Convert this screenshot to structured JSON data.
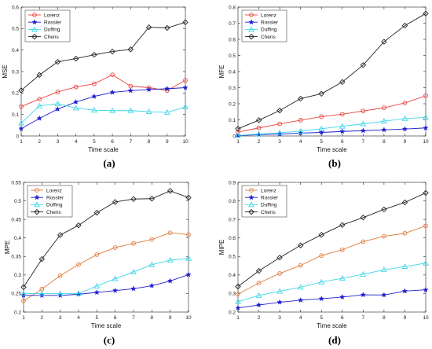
{
  "chart_data": [
    {
      "type": "line",
      "caption": "(a)",
      "xlabel": "Time scale",
      "ylabel": "MSE",
      "x": [
        1,
        2,
        3,
        4,
        5,
        6,
        7,
        8,
        9,
        10
      ],
      "xticks": [
        1,
        2,
        3,
        4,
        5,
        6,
        7,
        8,
        9,
        10
      ],
      "ylim": [
        0,
        0.6
      ],
      "yticks": [
        0,
        0.1,
        0.2,
        0.3,
        0.4,
        0.5,
        0.6
      ],
      "yticklabels": [
        "0",
        "0.1",
        "0.2",
        "0.3",
        "0.4",
        "0.5",
        "0.6"
      ],
      "grid": false,
      "legend": "top-left",
      "series": [
        {
          "name": "Lorenz",
          "color": "#e8413c",
          "marker": "circle",
          "values": [
            0.137,
            0.172,
            0.205,
            0.228,
            0.243,
            0.285,
            0.232,
            0.225,
            0.212,
            0.259
          ]
        },
        {
          "name": "Rossler",
          "color": "#1f1fd0",
          "marker": "star",
          "values": [
            0.034,
            0.082,
            0.125,
            0.158,
            0.184,
            0.203,
            0.211,
            0.216,
            0.22,
            0.225
          ]
        },
        {
          "name": "Duffing",
          "color": "#3dd6e8",
          "marker": "triangle",
          "values": [
            0.06,
            0.14,
            0.15,
            0.13,
            0.12,
            0.118,
            0.118,
            0.113,
            0.11,
            0.135
          ]
        },
        {
          "name": "Chens",
          "color": "#222222",
          "marker": "diamond",
          "values": [
            0.212,
            0.284,
            0.345,
            0.36,
            0.378,
            0.393,
            0.403,
            0.506,
            0.503,
            0.529
          ]
        }
      ]
    },
    {
      "type": "line",
      "caption": "(b)",
      "xlabel": "Time scale",
      "ylabel": "MFE",
      "x": [
        1,
        2,
        3,
        4,
        5,
        6,
        7,
        8,
        9,
        10
      ],
      "xticks": [
        1,
        2,
        3,
        4,
        5,
        6,
        7,
        8,
        9,
        10
      ],
      "ylim": [
        0,
        0.8
      ],
      "yticks": [
        0,
        0.1,
        0.2,
        0.3,
        0.4,
        0.5,
        0.6,
        0.7,
        0.8
      ],
      "yticklabels": [
        "0",
        "0.1",
        "0.2",
        "0.3",
        "0.4",
        "0.5",
        "0.6",
        "0.7",
        "0.8"
      ],
      "grid": false,
      "legend": "top-left",
      "series": [
        {
          "name": "Lorenz",
          "color": "#e8413c",
          "marker": "circle",
          "values": [
            0.025,
            0.05,
            0.075,
            0.098,
            0.12,
            0.135,
            0.155,
            0.175,
            0.205,
            0.25
          ]
        },
        {
          "name": "Rossler",
          "color": "#1f1fd0",
          "marker": "star",
          "values": [
            0.003,
            0.008,
            0.012,
            0.018,
            0.022,
            0.028,
            0.033,
            0.038,
            0.043,
            0.05
          ]
        },
        {
          "name": "Duffing",
          "color": "#3dd6e8",
          "marker": "triangle",
          "values": [
            0.004,
            0.012,
            0.02,
            0.03,
            0.045,
            0.06,
            0.075,
            0.092,
            0.108,
            0.115
          ]
        },
        {
          "name": "Chens",
          "color": "#222222",
          "marker": "diamond",
          "values": [
            0.045,
            0.098,
            0.158,
            0.232,
            0.262,
            0.335,
            0.44,
            0.585,
            0.685,
            0.76
          ]
        }
      ]
    },
    {
      "type": "line",
      "caption": "(c)",
      "xlabel": "Time scale",
      "ylabel": "MPE",
      "x": [
        1,
        2,
        3,
        4,
        5,
        6,
        7,
        8,
        9,
        10
      ],
      "xticks": [
        1,
        2,
        3,
        4,
        5,
        6,
        7,
        8,
        9,
        10
      ],
      "ylim": [
        0.2,
        0.55
      ],
      "yticks": [
        0.2,
        0.25,
        0.3,
        0.35,
        0.4,
        0.45,
        0.5,
        0.55
      ],
      "yticklabels": [
        "0.2",
        "0.25",
        "0.3",
        "0.35",
        "0.4",
        "0.45",
        "0.5",
        "0.55"
      ],
      "grid": false,
      "legend": "top-left",
      "series": [
        {
          "name": "Lorenz",
          "color": "#e07a3a",
          "marker": "circle",
          "values": [
            0.23,
            0.262,
            0.298,
            0.328,
            0.355,
            0.374,
            0.385,
            0.396,
            0.414,
            0.409
          ]
        },
        {
          "name": "Rossler",
          "color": "#1f1fd0",
          "marker": "star",
          "values": [
            0.245,
            0.245,
            0.245,
            0.248,
            0.253,
            0.258,
            0.263,
            0.271,
            0.284,
            0.301
          ]
        },
        {
          "name": "Duffing",
          "color": "#3dd6e8",
          "marker": "triangle",
          "values": [
            0.25,
            0.25,
            0.25,
            0.25,
            0.27,
            0.29,
            0.308,
            0.328,
            0.34,
            0.345
          ]
        },
        {
          "name": "Chens",
          "color": "#222222",
          "marker": "diamond",
          "values": [
            0.267,
            0.343,
            0.408,
            0.434,
            0.468,
            0.497,
            0.505,
            0.506,
            0.527,
            0.509
          ]
        }
      ]
    },
    {
      "type": "line",
      "caption": "(d)",
      "xlabel": "Time scale",
      "ylabel": "MIPE",
      "x": [
        1,
        2,
        3,
        4,
        5,
        6,
        7,
        8,
        9,
        10
      ],
      "xticks": [
        1,
        2,
        3,
        4,
        5,
        6,
        7,
        8,
        9,
        10
      ],
      "ylim": [
        0.2,
        0.9
      ],
      "yticks": [
        0.2,
        0.3,
        0.4,
        0.5,
        0.6,
        0.7,
        0.8,
        0.9
      ],
      "yticklabels": [
        "0.2",
        "0.3",
        "0.4",
        "0.5",
        "0.6",
        "0.7",
        "0.8",
        "0.9"
      ],
      "grid": false,
      "legend": "top-left",
      "series": [
        {
          "name": "Lorenz",
          "color": "#e07a3a",
          "marker": "circle",
          "values": [
            0.297,
            0.357,
            0.408,
            0.452,
            0.505,
            0.536,
            0.58,
            0.609,
            0.625,
            0.665
          ]
        },
        {
          "name": "Rossler",
          "color": "#1f1fd0",
          "marker": "star",
          "values": [
            0.222,
            0.238,
            0.253,
            0.264,
            0.272,
            0.281,
            0.293,
            0.292,
            0.313,
            0.32
          ]
        },
        {
          "name": "Duffing",
          "color": "#3dd6e8",
          "marker": "triangle",
          "values": [
            0.256,
            0.29,
            0.312,
            0.334,
            0.362,
            0.382,
            0.404,
            0.428,
            0.446,
            0.464
          ]
        },
        {
          "name": "Chens",
          "color": "#222222",
          "marker": "diamond",
          "values": [
            0.338,
            0.422,
            0.494,
            0.56,
            0.617,
            0.67,
            0.71,
            0.754,
            0.792,
            0.843
          ]
        }
      ]
    }
  ]
}
